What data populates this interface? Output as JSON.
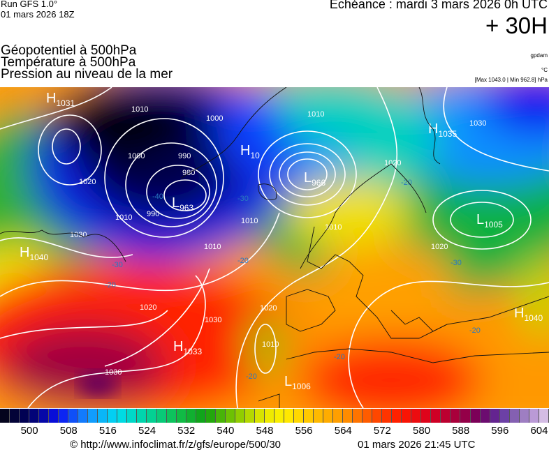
{
  "header": {
    "run": "Run GFS 1.0°",
    "run_date": "01 mars 2026 18Z",
    "titles": [
      "Géopotentiel à 500hPa",
      "Température à 500hPa",
      "Pression au niveau de la mer"
    ],
    "echeance": "Echéance : mardi 3 mars 2026 0h UTC",
    "lead_time": "+ 30H",
    "unit_geopotential": "gpdam",
    "unit_temperature": "°C",
    "pressure_range": "[Max 1043.0 | Min 962.8] hPa"
  },
  "map": {
    "pressure_centers": [
      {
        "type": "H",
        "value": "1031"
      },
      {
        "type": "L",
        "value": "963"
      },
      {
        "type": "H",
        "value": "10"
      },
      {
        "type": "L",
        "value": "966"
      },
      {
        "type": "H",
        "value": "1035"
      },
      {
        "type": "L",
        "value": "1005"
      },
      {
        "type": "H",
        "value": "1040"
      },
      {
        "type": "H",
        "value": "1033"
      },
      {
        "type": "L",
        "value": "1006"
      },
      {
        "type": "H",
        "value": "1040"
      }
    ],
    "isobar_labels": [
      "1010",
      "1000",
      "990",
      "980",
      "990",
      "1000",
      "1010",
      "1020",
      "1030",
      "1010",
      "1010",
      "1010",
      "1020",
      "1030",
      "1020",
      "1020",
      "1030",
      "1030",
      "1010",
      "1020",
      "1010"
    ],
    "temperature_labels": [
      "-40",
      "-30",
      "-30",
      "-20",
      "-30",
      "-20",
      "-20",
      "-20",
      "-20",
      "-20"
    ]
  },
  "colorbar": {
    "range": [
      494,
      606
    ],
    "step": 2,
    "palette": [
      {
        "v": 494,
        "c": "#05050f"
      },
      {
        "v": 500,
        "c": "#000060"
      },
      {
        "v": 506,
        "c": "#0a10f0"
      },
      {
        "v": 512,
        "c": "#1490ff"
      },
      {
        "v": 518,
        "c": "#00dcf0"
      },
      {
        "v": 524,
        "c": "#00d4a0"
      },
      {
        "v": 530,
        "c": "#10c050"
      },
      {
        "v": 536,
        "c": "#10a010"
      },
      {
        "v": 542,
        "c": "#80c800"
      },
      {
        "v": 548,
        "c": "#e8e800"
      },
      {
        "v": 552,
        "c": "#fff000"
      },
      {
        "v": 558,
        "c": "#ffc000"
      },
      {
        "v": 564,
        "c": "#ff9800"
      },
      {
        "v": 570,
        "c": "#ff5000"
      },
      {
        "v": 576,
        "c": "#ff1800"
      },
      {
        "v": 582,
        "c": "#d80020"
      },
      {
        "v": 588,
        "c": "#a00040"
      },
      {
        "v": 592,
        "c": "#700060"
      },
      {
        "v": 596,
        "c": "#6030a0"
      },
      {
        "v": 600,
        "c": "#9070b8"
      },
      {
        "v": 604,
        "c": "#c8a8e0"
      },
      {
        "v": 606,
        "c": "#e0d0e8"
      }
    ],
    "tick_labels": [
      "500",
      "508",
      "516",
      "524",
      "532",
      "540",
      "548",
      "556",
      "564",
      "572",
      "580",
      "588",
      "596",
      "604"
    ]
  },
  "footer": {
    "url": "© http://www.infoclimat.fr/z/gfs/europe/500/30",
    "generated": "01 mars 2026 21:45 UTC"
  }
}
